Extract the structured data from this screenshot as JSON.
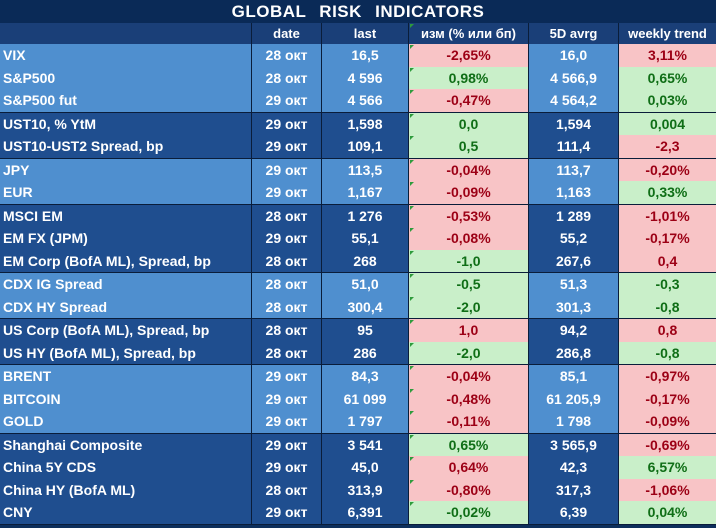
{
  "title": "GLOBAL   RISK   INDICATORS",
  "columns": [
    "date",
    "last",
    "изм (% или бп)",
    "5D avrg",
    "weekly trend"
  ],
  "groups": [
    {
      "rows": [
        {
          "name": "VIX",
          "date": "28 окт",
          "last": "16,5",
          "change": "-2,65%",
          "change_sign": "neg",
          "avg5d": "16,0",
          "weekly": "3,11%",
          "weekly_sign": "neg"
        },
        {
          "name": "S&P500",
          "date": "28 окт",
          "last": "4 596",
          "change": "0,98%",
          "change_sign": "pos",
          "avg5d": "4 566,9",
          "weekly": "0,65%",
          "weekly_sign": "pos"
        },
        {
          "name": "S&P500 fut",
          "date": "29 окт",
          "last": "4 566",
          "change": "-0,47%",
          "change_sign": "neg",
          "avg5d": "4 564,2",
          "weekly": "0,03%",
          "weekly_sign": "pos"
        }
      ]
    },
    {
      "rows": [
        {
          "name": "UST10, % YtM",
          "date": "29 окт",
          "last": "1,598",
          "change": "0,0",
          "change_sign": "pos",
          "avg5d": "1,594",
          "weekly": "0,004",
          "weekly_sign": "pos"
        },
        {
          "name": "UST10-UST2 Spread, bp",
          "date": "29 окт",
          "last": "109,1",
          "change": "0,5",
          "change_sign": "pos",
          "avg5d": "111,4",
          "weekly": "-2,3",
          "weekly_sign": "neg"
        }
      ]
    },
    {
      "rows": [
        {
          "name": "JPY",
          "date": "29 окт",
          "last": "113,5",
          "change": "-0,04%",
          "change_sign": "neg",
          "avg5d": "113,7",
          "weekly": "-0,20%",
          "weekly_sign": "neg"
        },
        {
          "name": "EUR",
          "date": "29 окт",
          "last": "1,167",
          "change": "-0,09%",
          "change_sign": "neg",
          "avg5d": "1,163",
          "weekly": "0,33%",
          "weekly_sign": "pos"
        }
      ]
    },
    {
      "rows": [
        {
          "name": "MSCI EM",
          "date": "28 окт",
          "last": "1 276",
          "change": "-0,53%",
          "change_sign": "neg",
          "avg5d": "1 289",
          "weekly": "-1,01%",
          "weekly_sign": "neg"
        },
        {
          "name": "EM FX (JPM)",
          "date": "29 окт",
          "last": "55,1",
          "change": "-0,08%",
          "change_sign": "neg",
          "avg5d": "55,2",
          "weekly": "-0,17%",
          "weekly_sign": "neg"
        },
        {
          "name": "EM Corp (BofA ML), Spread, bp",
          "date": "28 окт",
          "last": "268",
          "change": "-1,0",
          "change_sign": "pos",
          "avg5d": "267,6",
          "weekly": "0,4",
          "weekly_sign": "neg"
        }
      ]
    },
    {
      "rows": [
        {
          "name": "CDX IG Spread",
          "date": "28 окт",
          "last": "51,0",
          "change": "-0,5",
          "change_sign": "pos",
          "avg5d": "51,3",
          "weekly": "-0,3",
          "weekly_sign": "pos"
        },
        {
          "name": "CDX HY Spread",
          "date": "28 окт",
          "last": "300,4",
          "change": "-2,0",
          "change_sign": "pos",
          "avg5d": "301,3",
          "weekly": "-0,8",
          "weekly_sign": "pos"
        }
      ]
    },
    {
      "rows": [
        {
          "name": "US Corp (BofA ML), Spread, bp",
          "date": "28 окт",
          "last": "95",
          "change": "1,0",
          "change_sign": "neg",
          "avg5d": "94,2",
          "weekly": "0,8",
          "weekly_sign": "neg"
        },
        {
          "name": "US HY (BofA ML), Spread, bp",
          "date": "28 окт",
          "last": "286",
          "change": "-2,0",
          "change_sign": "pos",
          "avg5d": "286,8",
          "weekly": "-0,8",
          "weekly_sign": "pos"
        }
      ]
    },
    {
      "rows": [
        {
          "name": "BRENT",
          "date": "29 окт",
          "last": "84,3",
          "change": "-0,04%",
          "change_sign": "neg",
          "avg5d": "85,1",
          "weekly": "-0,97%",
          "weekly_sign": "neg"
        },
        {
          "name": "BITCOIN",
          "date": "29 окт",
          "last": "61 099",
          "change": "-0,48%",
          "change_sign": "neg",
          "avg5d": "61 205,9",
          "weekly": "-0,17%",
          "weekly_sign": "neg"
        },
        {
          "name": "GOLD",
          "date": "29 окт",
          "last": "1 797",
          "change": "-0,11%",
          "change_sign": "neg",
          "avg5d": "1 798",
          "weekly": "-0,09%",
          "weekly_sign": "neg"
        }
      ]
    },
    {
      "rows": [
        {
          "name": "Shanghai Composite",
          "date": "29 окт",
          "last": "3 541",
          "change": "0,65%",
          "change_sign": "pos",
          "avg5d": "3 565,9",
          "weekly": "-0,69%",
          "weekly_sign": "neg"
        },
        {
          "name": "China 5Y CDS",
          "date": "29 окт",
          "last": "45,0",
          "change": "0,64%",
          "change_sign": "neg",
          "avg5d": "42,3",
          "weekly": "6,57%",
          "weekly_sign": "pos"
        },
        {
          "name": "China HY (BofA ML)",
          "date": "28 окт",
          "last": "313,9",
          "change": "-0,80%",
          "change_sign": "neg",
          "avg5d": "317,3",
          "weekly": "-1,06%",
          "weekly_sign": "neg"
        },
        {
          "name": "CNY",
          "date": "29 окт",
          "last": "6,391",
          "change": "-0,02%",
          "change_sign": "pos",
          "avg5d": "6,39",
          "weekly": "0,04%",
          "weekly_sign": "pos"
        }
      ]
    }
  ],
  "chart_data": {
    "type": "table",
    "title": "GLOBAL   RISK   INDICATORS",
    "columns": [
      "",
      "date",
      "last",
      "изм (% или бп)",
      "5D avrg",
      "weekly trend"
    ],
    "rows": [
      [
        "VIX",
        "28 окт",
        "16,5",
        "-2,65%",
        "16,0",
        "3,11%"
      ],
      [
        "S&P500",
        "28 окт",
        "4 596",
        "0,98%",
        "4 566,9",
        "0,65%"
      ],
      [
        "S&P500 fut",
        "29 окт",
        "4 566",
        "-0,47%",
        "4 564,2",
        "0,03%"
      ],
      [
        "UST10, % YtM",
        "29 окт",
        "1,598",
        "0,0",
        "1,594",
        "0,004"
      ],
      [
        "UST10-UST2 Spread, bp",
        "29 окт",
        "109,1",
        "0,5",
        "111,4",
        "-2,3"
      ],
      [
        "JPY",
        "29 окт",
        "113,5",
        "-0,04%",
        "113,7",
        "-0,20%"
      ],
      [
        "EUR",
        "29 окт",
        "1,167",
        "-0,09%",
        "1,163",
        "0,33%"
      ],
      [
        "MSCI EM",
        "28 окт",
        "1 276",
        "-0,53%",
        "1 289",
        "-1,01%"
      ],
      [
        "EM FX (JPM)",
        "29 окт",
        "55,1",
        "-0,08%",
        "55,2",
        "-0,17%"
      ],
      [
        "EM Corp (BofA ML), Spread, bp",
        "28 окт",
        "268",
        "-1,0",
        "267,6",
        "0,4"
      ],
      [
        "CDX IG Spread",
        "28 окт",
        "51,0",
        "-0,5",
        "51,3",
        "-0,3"
      ],
      [
        "CDX HY Spread",
        "28 окт",
        "300,4",
        "-2,0",
        "301,3",
        "-0,8"
      ],
      [
        "US Corp (BofA ML), Spread, bp",
        "28 окт",
        "95",
        "1,0",
        "94,2",
        "0,8"
      ],
      [
        "US HY (BofA ML), Spread, bp",
        "28 окт",
        "286",
        "-2,0",
        "286,8",
        "-0,8"
      ],
      [
        "BRENT",
        "29 окт",
        "84,3",
        "-0,04%",
        "85,1",
        "-0,97%"
      ],
      [
        "BITCOIN",
        "29 окт",
        "61 099",
        "-0,48%",
        "61 205,9",
        "-0,17%"
      ],
      [
        "GOLD",
        "29 окт",
        "1 797",
        "-0,11%",
        "1 798",
        "-0,09%"
      ],
      [
        "Shanghai Composite",
        "29 окт",
        "3 541",
        "0,65%",
        "3 565,9",
        "-0,69%"
      ],
      [
        "China 5Y CDS",
        "29 окт",
        "45,0",
        "0,64%",
        "42,3",
        "6,57%"
      ],
      [
        "China HY (BofA ML)",
        "28 окт",
        "313,9",
        "-0,80%",
        "317,3",
        "-1,06%"
      ],
      [
        "CNY",
        "29 окт",
        "6,391",
        "-0,02%",
        "6,39",
        "0,04%"
      ]
    ]
  },
  "colors": {
    "positive_bg": "#c9efc9",
    "positive_text": "#0f6e16",
    "negative_bg": "#f8c4c6",
    "negative_text": "#9c0015",
    "name_light": "#4f8fcf",
    "name_dark": "#1f4e8f",
    "title_bg": "#0a2a57"
  }
}
